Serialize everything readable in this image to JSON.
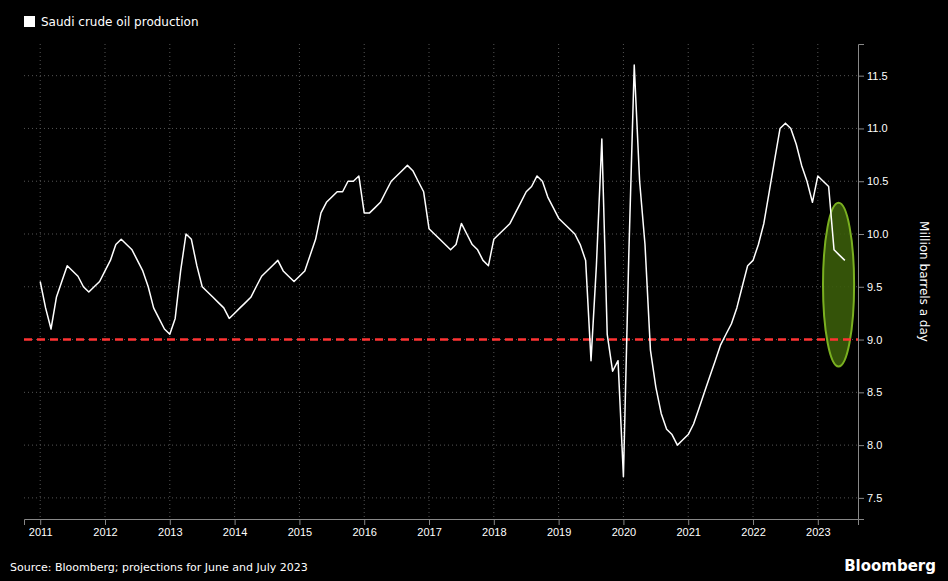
{
  "chart_data": {
    "type": "line",
    "ylabel": "Million barrels a day",
    "x": [
      2011.0,
      2011.083,
      2011.167,
      2011.25,
      2011.333,
      2011.417,
      2011.5,
      2011.583,
      2011.667,
      2011.75,
      2011.833,
      2011.917,
      2012.0,
      2012.083,
      2012.167,
      2012.25,
      2012.333,
      2012.417,
      2012.5,
      2012.583,
      2012.667,
      2012.75,
      2012.833,
      2012.917,
      2013.0,
      2013.083,
      2013.167,
      2013.25,
      2013.333,
      2013.417,
      2013.5,
      2013.583,
      2013.667,
      2013.75,
      2013.833,
      2013.917,
      2014.0,
      2014.083,
      2014.167,
      2014.25,
      2014.333,
      2014.417,
      2014.5,
      2014.583,
      2014.667,
      2014.75,
      2014.833,
      2014.917,
      2015.0,
      2015.083,
      2015.167,
      2015.25,
      2015.333,
      2015.417,
      2015.5,
      2015.583,
      2015.667,
      2015.75,
      2015.833,
      2015.917,
      2016.0,
      2016.083,
      2016.167,
      2016.25,
      2016.333,
      2016.417,
      2016.5,
      2016.583,
      2016.667,
      2016.75,
      2016.833,
      2016.917,
      2017.0,
      2017.083,
      2017.167,
      2017.25,
      2017.333,
      2017.417,
      2017.5,
      2017.583,
      2017.667,
      2017.75,
      2017.833,
      2017.917,
      2018.0,
      2018.083,
      2018.167,
      2018.25,
      2018.333,
      2018.417,
      2018.5,
      2018.583,
      2018.667,
      2018.75,
      2018.833,
      2018.917,
      2019.0,
      2019.083,
      2019.167,
      2019.25,
      2019.333,
      2019.417,
      2019.5,
      2019.583,
      2019.667,
      2019.75,
      2019.833,
      2019.917,
      2020.0,
      2020.083,
      2020.167,
      2020.25,
      2020.333,
      2020.417,
      2020.5,
      2020.583,
      2020.667,
      2020.75,
      2020.833,
      2020.917,
      2021.0,
      2021.083,
      2021.167,
      2021.25,
      2021.333,
      2021.417,
      2021.5,
      2021.583,
      2021.667,
      2021.75,
      2021.833,
      2021.917,
      2022.0,
      2022.083,
      2022.167,
      2022.25,
      2022.333,
      2022.417,
      2022.5,
      2022.583,
      2022.667,
      2022.75,
      2022.833,
      2022.917,
      2023.0,
      2023.083,
      2023.167,
      2023.25,
      2023.333,
      2023.417
    ],
    "series": [
      {
        "name": "Saudi crude oil production",
        "color": "#ffffff",
        "values": [
          9.55,
          9.3,
          9.1,
          9.4,
          9.55,
          9.7,
          9.65,
          9.6,
          9.5,
          9.45,
          9.5,
          9.55,
          9.65,
          9.75,
          9.9,
          9.95,
          9.9,
          9.85,
          9.75,
          9.65,
          9.5,
          9.3,
          9.2,
          9.1,
          9.05,
          9.2,
          9.65,
          10.0,
          9.95,
          9.7,
          9.5,
          9.45,
          9.4,
          9.35,
          9.3,
          9.2,
          9.25,
          9.3,
          9.35,
          9.4,
          9.5,
          9.6,
          9.65,
          9.7,
          9.75,
          9.65,
          9.6,
          9.55,
          9.6,
          9.65,
          9.8,
          9.95,
          10.2,
          10.3,
          10.35,
          10.4,
          10.4,
          10.5,
          10.5,
          10.55,
          10.2,
          10.2,
          10.25,
          10.3,
          10.4,
          10.5,
          10.55,
          10.6,
          10.65,
          10.6,
          10.5,
          10.4,
          10.05,
          10.0,
          9.95,
          9.9,
          9.85,
          9.9,
          10.1,
          10.0,
          9.9,
          9.85,
          9.75,
          9.7,
          9.95,
          10.0,
          10.05,
          10.1,
          10.2,
          10.3,
          10.4,
          10.45,
          10.55,
          10.5,
          10.35,
          10.25,
          10.15,
          10.1,
          10.05,
          10.0,
          9.9,
          9.75,
          8.8,
          9.7,
          10.9,
          9.05,
          8.7,
          8.8,
          7.7,
          9.8,
          11.6,
          10.5,
          9.9,
          8.9,
          8.55,
          8.3,
          8.15,
          8.1,
          8.0,
          8.05,
          8.1,
          8.2,
          8.35,
          8.5,
          8.65,
          8.8,
          8.95,
          9.05,
          9.15,
          9.3,
          9.5,
          9.7,
          9.75,
          9.9,
          10.1,
          10.4,
          10.7,
          11.0,
          11.05,
          11.0,
          10.85,
          10.65,
          10.5,
          10.3,
          10.55,
          10.5,
          10.45,
          9.85,
          9.8,
          9.75
        ]
      }
    ],
    "xlim": [
      2010.75,
      2023.62
    ],
    "xticks": [
      2011,
      2012,
      2013,
      2014,
      2015,
      2016,
      2017,
      2018,
      2019,
      2020,
      2021,
      2022,
      2023
    ],
    "ylim": [
      7.3,
      11.8
    ],
    "yticks": [
      7.5,
      {
        "value": 8.0,
        "label": "8.0"
      },
      8.5,
      {
        "value": 9.0,
        "label": "9.0"
      },
      9.5,
      {
        "value": 10.0,
        "label": "10.0"
      },
      10.5,
      {
        "value": 11.0,
        "label": "11.0"
      },
      11.5
    ],
    "grid": true,
    "legend": "top-left",
    "reference_line": {
      "value": 9.0,
      "color": "#ff3333",
      "line_style": "dashed"
    },
    "highlight": {
      "x": 2023.32,
      "y": 9.52,
      "width": 0.48,
      "height": 1.55,
      "color": "#3a5c0a",
      "edge_color": "#7ab020"
    },
    "annotations": [
      "Source: Bloomberg; projections for June and July 2023",
      "Bloomberg"
    ]
  }
}
